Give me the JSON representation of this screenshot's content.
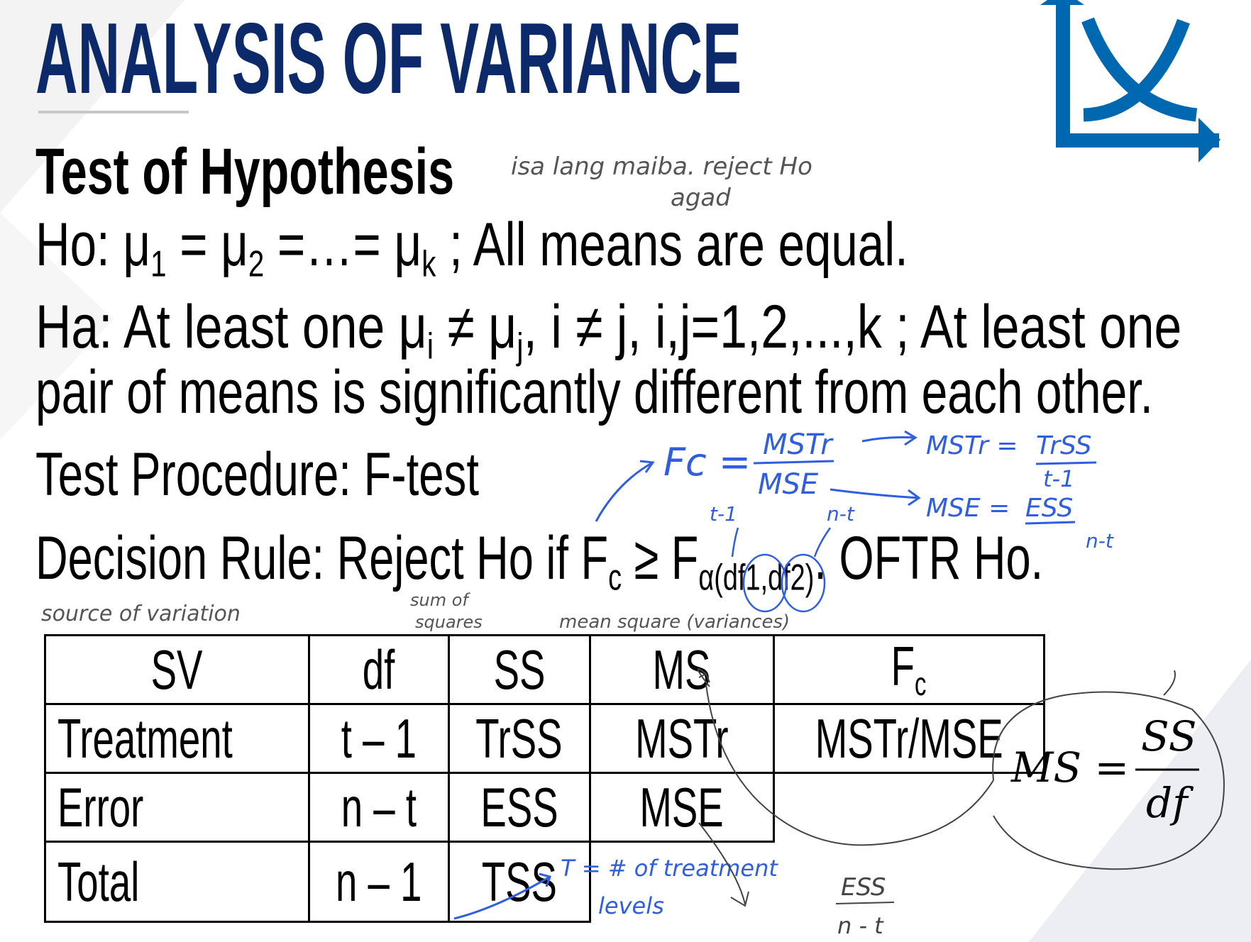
{
  "slide": {
    "title": "ANALYSIS OF VARIANCE",
    "subtitle": "Test of Hypothesis",
    "ho": {
      "prefix": "Ho: μ",
      "s1": "1",
      "eq1": " = μ",
      "s2": "2",
      "eq2": " =…= μ",
      "sk": "k",
      "rest": " ; All means are equal."
    },
    "ha": {
      "prefix": "Ha: At least one μ",
      "si": "i",
      "neq": " ≠ μ",
      "sj": "j",
      "rest": ", i ≠ j, i,j=1,2,...,k ; At least one"
    },
    "ha_line2": "pair of means is significantly different from each other.",
    "test_procedure": "Test Procedure: F-test",
    "decision": {
      "prefix": "Decision Rule: Reject Ho if F",
      "sc": "c",
      "mid": " ≥ F",
      "sub": "α(df1,df2)",
      "rest": ". OFTR Ho."
    }
  },
  "table": {
    "headers": [
      "SV",
      "df",
      "SS",
      "MS",
      "F"
    ],
    "header_f_sub": "c",
    "rows": [
      [
        "Treatment",
        "t – 1",
        "TrSS",
        "MSTr",
        "MSTr/MSE"
      ],
      [
        "Error",
        "n – t",
        "ESS",
        "MSE"
      ],
      [
        "Total",
        "n – 1",
        "TSS"
      ]
    ]
  },
  "formula": {
    "lhs": "MS =",
    "num": "SS",
    "den": "df"
  },
  "handwritten_notes": {
    "note_top": "isa lang maiba. reject Ho",
    "note_top2": "agad",
    "fc": "Fc =",
    "fc_num": "MSTr",
    "fc_den": "MSE",
    "mstr": "MSTr =",
    "mstr_num": "TrSS",
    "mstr_den": "t-1",
    "mse": "MSE =",
    "mse_num": "ESS",
    "mse_den": "n-t",
    "df1": "t-1",
    "df2": "n-t",
    "sv_label": "source of variation",
    "ss_label1": "sum of",
    "ss_label2": "squares",
    "ms_label": "mean square (variances)",
    "t_note1": "T = # of treatment",
    "t_note2": "levels",
    "ess_num": "ESS",
    "ess_den": "n - t"
  },
  "colors": {
    "title": "#0c2a6a",
    "logo": "#0067b1",
    "ink": "#2f5fe0"
  },
  "icons": {
    "logo": "chart-axes-curves-logo"
  }
}
